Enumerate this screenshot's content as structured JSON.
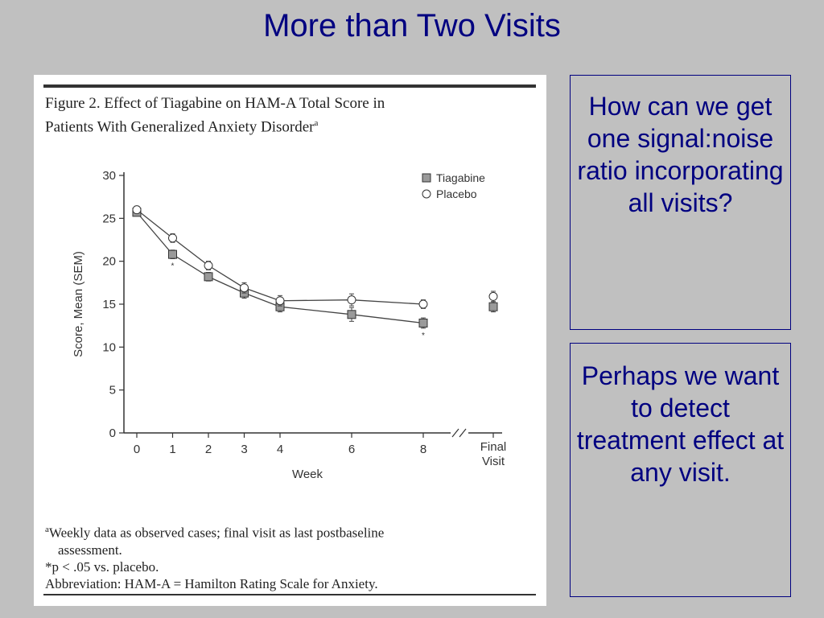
{
  "slide": {
    "title": "More than Two Visits",
    "box1_text": "How can we get one signal:noise ratio incorporating all visits?",
    "box2_text": "Perhaps we want to detect treatment effect at any visit."
  },
  "figure": {
    "caption_line1": "Figure 2. Effect of Tiagabine on HAM-A Total Score in",
    "caption_line2": "Patients With Generalized Anxiety Disorder",
    "caption_sup": "a",
    "footnote1_sup": "a",
    "footnote1_line1": "Weekly data as observed cases; final visit as last postbaseline",
    "footnote1_line2": "assessment.",
    "footnote2": "*p < .05 vs. placebo.",
    "footnote3": "Abbreviation: HAM-A = Hamilton Rating Scale for Anxiety."
  },
  "chart_data": {
    "type": "line",
    "xlabel": "Week",
    "ylabel": "Score, Mean (SEM)",
    "ylim": [
      0,
      30
    ],
    "yticks": [
      0,
      5,
      10,
      15,
      20,
      25,
      30
    ],
    "x_ticks": [
      "0",
      "1",
      "2",
      "3",
      "4",
      "6",
      "8"
    ],
    "final_label_line1": "Final",
    "final_label_line2": "Visit",
    "legend_position": "top-right",
    "significance_marker": "*",
    "series": [
      {
        "name": "Tiagabine",
        "marker": "square",
        "weeks": [
          0,
          1,
          2,
          3,
          4,
          6,
          8
        ],
        "values": [
          25.7,
          20.8,
          18.2,
          16.3,
          14.7,
          13.8,
          12.8
        ],
        "sem": [
          0.4,
          0.5,
          0.5,
          0.6,
          0.6,
          0.8,
          0.6
        ],
        "significant_at": [
          1,
          8
        ],
        "final_visit": 14.7,
        "final_sem": 0.6
      },
      {
        "name": "Placebo",
        "marker": "circle",
        "weeks": [
          0,
          1,
          2,
          3,
          4,
          6,
          8
        ],
        "values": [
          26.0,
          22.7,
          19.5,
          16.9,
          15.4,
          15.5,
          15.0
        ],
        "sem": [
          0.4,
          0.5,
          0.5,
          0.6,
          0.6,
          0.7,
          0.5
        ],
        "significant_at": [],
        "final_visit": 15.9,
        "final_sem": 0.6
      }
    ],
    "colors": {
      "tiagabine_fill": "#9a9a9a",
      "placebo_fill": "#ffffff",
      "line": "#444444"
    }
  }
}
